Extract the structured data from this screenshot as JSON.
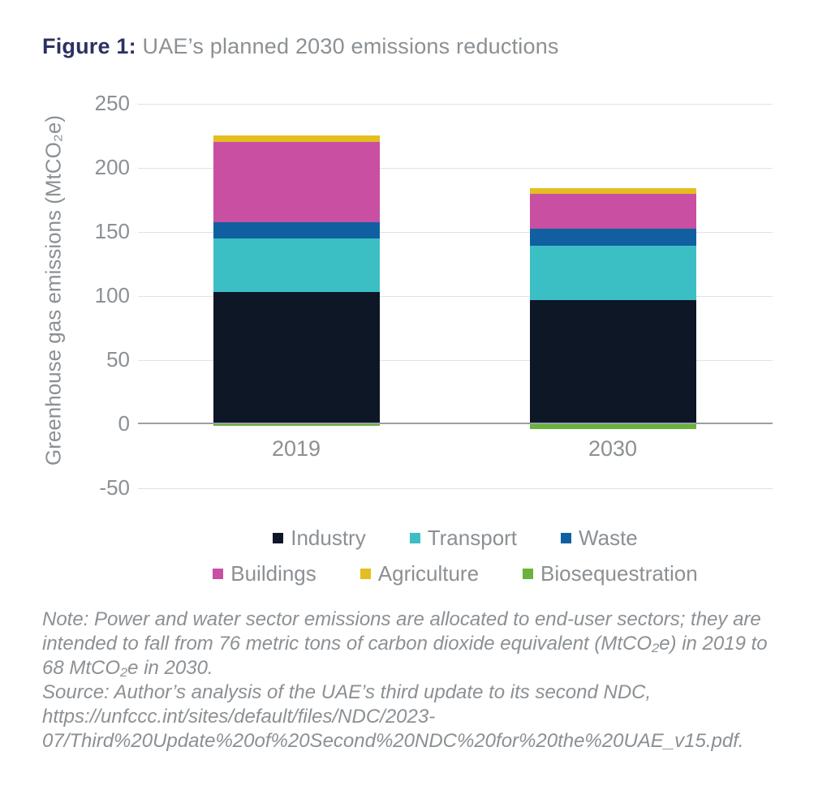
{
  "figure": {
    "label": "Figure 1:",
    "title": " UAE’s planned 2030 emissions reductions"
  },
  "chart_data": {
    "type": "bar",
    "stacked": true,
    "title": "UAE’s planned 2030 emissions reductions",
    "categories": [
      "2019",
      "2030"
    ],
    "series": [
      {
        "name": "Industry",
        "color": "#0e1726",
        "values": [
          103,
          97
        ]
      },
      {
        "name": "Transport",
        "color": "#3cbfc4",
        "values": [
          42,
          42
        ]
      },
      {
        "name": "Waste",
        "color": "#1060a1",
        "values": [
          12.5,
          13.5
        ]
      },
      {
        "name": "Buildings",
        "color": "#c94fa3",
        "values": [
          63,
          27
        ]
      },
      {
        "name": "Agriculture",
        "color": "#e4bd20",
        "values": [
          5,
          4.5
        ]
      },
      {
        "name": "Biosequestration",
        "color": "#6ab23c",
        "values": [
          -1,
          -4
        ]
      }
    ],
    "xlabel": "",
    "ylabel": "Greenhouse gas emissions (MtCO₂e)",
    "yticks": [
      250,
      200,
      150,
      100,
      50,
      0,
      -50
    ],
    "ylim": [
      -50,
      250
    ],
    "grid": true,
    "legend_position": "bottom",
    "gridline_color": "#dfe1e3",
    "zero_line_color": "#9aa0a5",
    "text_color": "#8b9094"
  },
  "note": "Note: Power and water sector emissions are allocated to end-user sectors; they are intended to fall from 76 metric tons of carbon dioxide equivalent (MtCO₂e) in 2019 to 68 MtCO₂e in 2030.",
  "source": "Source: Author’s analysis of the UAE’s third update to its second NDC, https://unfccc.int/sites/default/files/NDC/2023-07/Third%20Update%20of%20Second%20NDC%20for%20the%20UAE_v15.pdf."
}
